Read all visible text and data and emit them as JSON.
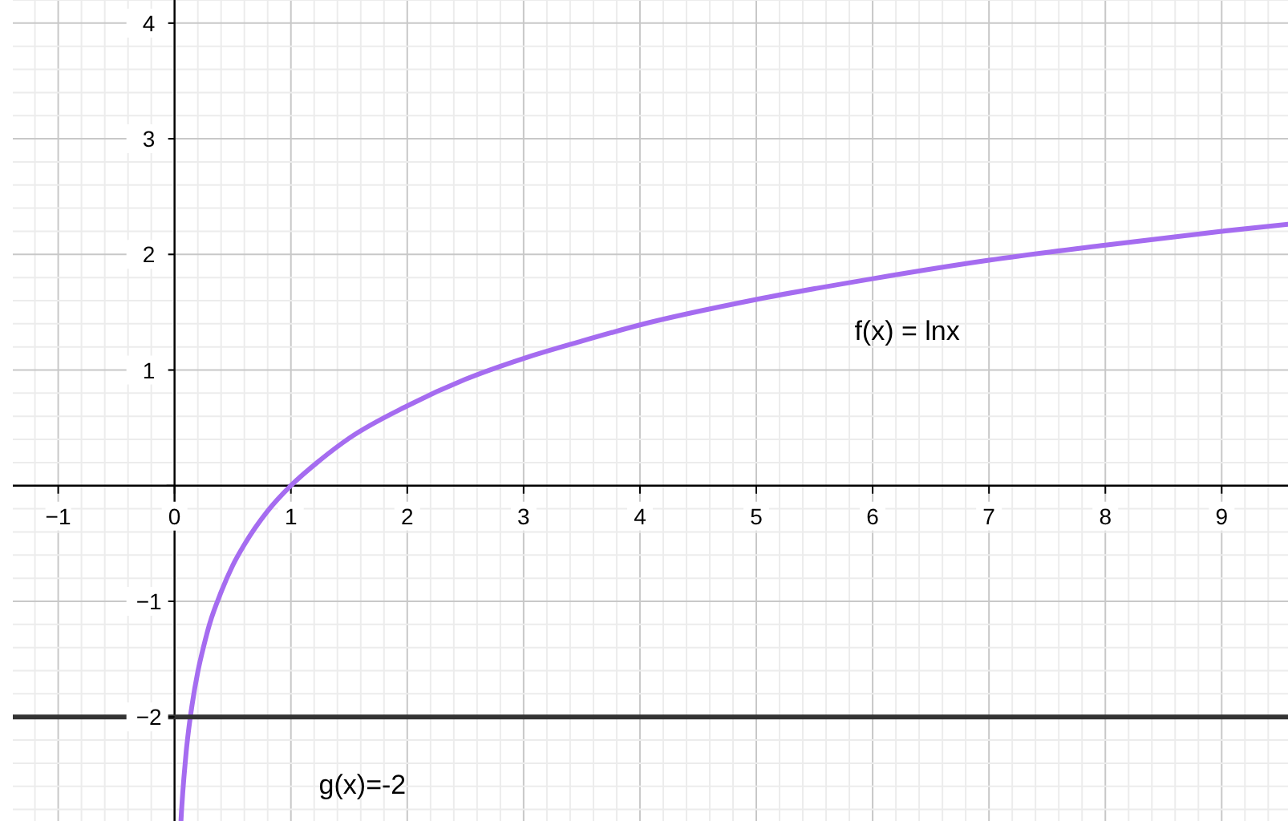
{
  "chart_data": {
    "type": "line",
    "xlim": [
      -1.39,
      9.57
    ],
    "ylim": [
      -2.9,
      4.2
    ],
    "xticks": [
      {
        "value": -1,
        "label": "−1"
      },
      0,
      1,
      2,
      3,
      4,
      5,
      6,
      7,
      8,
      9
    ],
    "yticks": [
      {
        "value": -2,
        "label": "−2"
      },
      {
        "value": -1,
        "label": "−1"
      },
      {
        "value": 0,
        "label": null
      },
      1,
      2,
      3,
      4
    ],
    "grid": true,
    "marker": "none",
    "line_style": "solid",
    "series": [
      {
        "name": "f(x) = lnx",
        "color": "#a56cf0",
        "x": [
          0.055,
          0.06,
          0.07,
          0.08,
          0.1,
          0.12,
          0.15,
          0.2,
          0.25,
          0.3,
          0.4,
          0.5,
          0.6,
          0.8,
          1,
          1.25,
          1.5,
          2,
          2.5,
          3,
          3.5,
          4,
          5,
          6,
          7,
          8,
          9,
          9.57
        ],
        "values": [
          -2.9,
          -2.81,
          -2.66,
          -2.53,
          -2.3,
          -2.12,
          -1.9,
          -1.61,
          -1.39,
          -1.2,
          -0.92,
          -0.69,
          -0.51,
          -0.22,
          0,
          0.22,
          0.41,
          0.69,
          0.92,
          1.1,
          1.25,
          1.39,
          1.61,
          1.79,
          1.95,
          2.08,
          2.2,
          2.26
        ]
      },
      {
        "name": "g(x)=-2",
        "color": "#333333",
        "x": [
          -1.39,
          9.57
        ],
        "values": [
          -2,
          -2
        ]
      }
    ]
  }
}
